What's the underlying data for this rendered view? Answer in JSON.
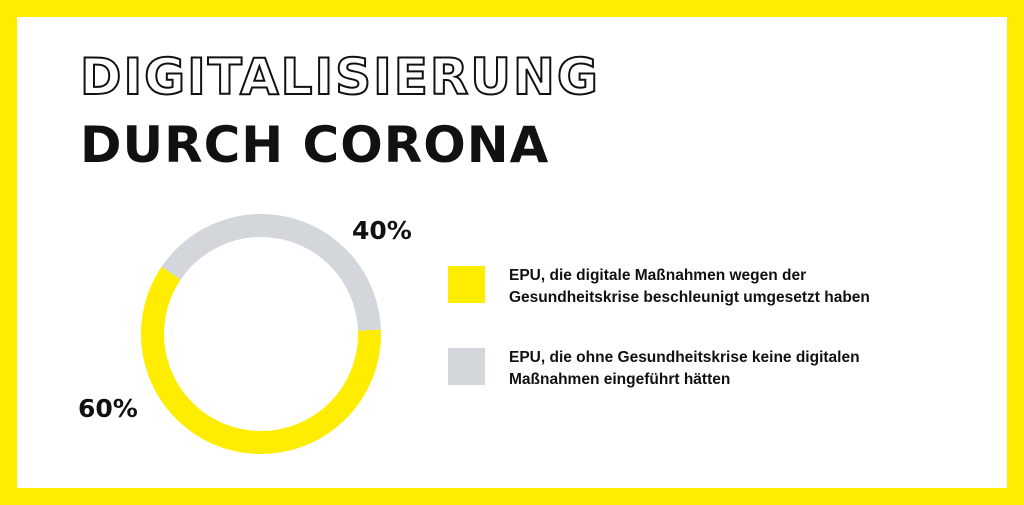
{
  "title": {
    "line1": "DIGITALISIERUNG",
    "line2": "DURCH CORONA"
  },
  "colors": {
    "frame": "#ffed00",
    "primary": "#ffed00",
    "secondary": "#d3d6db",
    "text": "#111111",
    "background": "#ffffff"
  },
  "chart_data": {
    "type": "pie",
    "style": "donut",
    "slices": [
      {
        "label": "EPU, die digitale Maßnahmen wegen der Gesundheitskrise beschleunigt umgesetzt haben",
        "label_lines": [
          "EPU, die digitale Maßnahmen wegen der",
          "Gesundheitskrise beschleunigt umgesetzt haben"
        ],
        "value": 60,
        "display": "60%",
        "color": "#ffed00"
      },
      {
        "label": "EPU, die ohne Gesundheitskrise keine digitalen Maßnahmen eingeführt hätten",
        "label_lines": [
          "EPU, die ohne Gesundheitskrise keine digitalen",
          "Maßnahmen eingeführt hätten"
        ],
        "value": 40,
        "display": "40%",
        "color": "#d3d6db"
      }
    ],
    "legend_placement": "right"
  }
}
